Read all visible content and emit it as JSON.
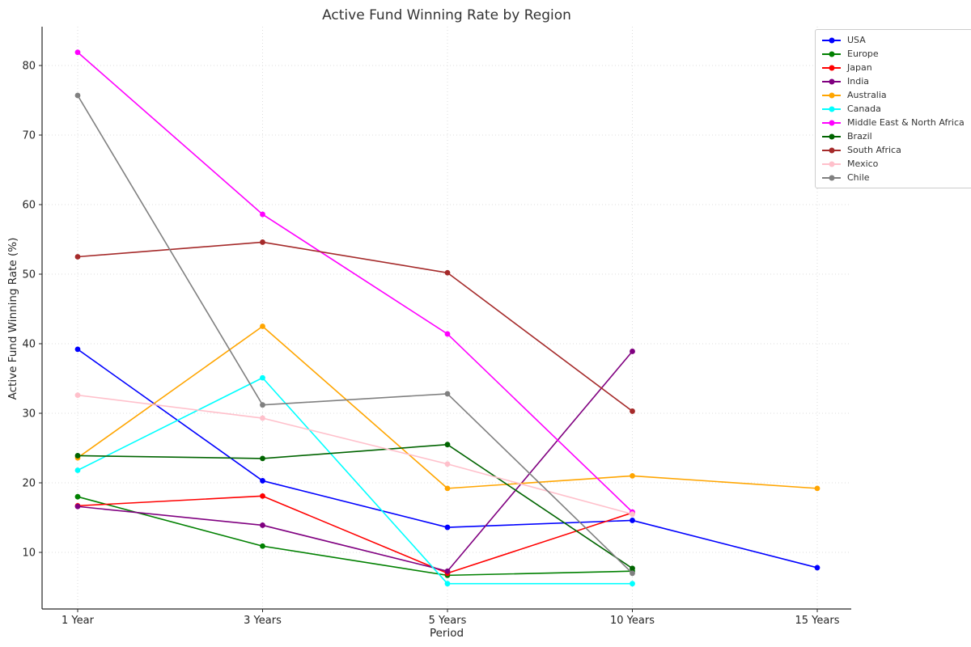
{
  "chart_data": {
    "type": "line",
    "title": "Active Fund Winning Rate by Region",
    "xlabel": "Period",
    "ylabel": "Active Fund Winning Rate (%)",
    "categories": [
      "1 Year",
      "3 Years",
      "5 Years",
      "10 Years",
      "15 Years"
    ],
    "y_ticks": [
      10,
      20,
      30,
      40,
      50,
      60,
      70,
      80
    ],
    "ylim": [
      1.9,
      85.6
    ],
    "grid": "dotted",
    "legend_position": "upper right outside",
    "marker": "circle",
    "series": [
      {
        "name": "USA",
        "color": "#0000ff",
        "values": [
          39.2,
          20.3,
          13.6,
          14.6,
          7.8
        ]
      },
      {
        "name": "Europe",
        "color": "#008000",
        "values": [
          18.0,
          10.9,
          6.7,
          7.3,
          null
        ]
      },
      {
        "name": "Japan",
        "color": "#ff0000",
        "values": [
          16.7,
          18.1,
          7.0,
          15.7,
          null
        ]
      },
      {
        "name": "India",
        "color": "#800080",
        "values": [
          16.6,
          13.9,
          7.3,
          38.9,
          null
        ]
      },
      {
        "name": "Australia",
        "color": "#ffa500",
        "values": [
          23.6,
          42.5,
          19.2,
          21.0,
          19.2
        ]
      },
      {
        "name": "Canada",
        "color": "#00ffff",
        "values": [
          21.8,
          35.1,
          5.5,
          5.5,
          null
        ]
      },
      {
        "name": "Middle East & North Africa",
        "color": "#ff00ff",
        "values": [
          81.9,
          58.6,
          41.4,
          15.8,
          null
        ]
      },
      {
        "name": "Brazil",
        "color": "#006400",
        "values": [
          23.9,
          23.5,
          25.5,
          7.7,
          null
        ]
      },
      {
        "name": "South Africa",
        "color": "#a52a2a",
        "values": [
          52.5,
          54.6,
          50.2,
          30.3,
          null
        ]
      },
      {
        "name": "Mexico",
        "color": "#ffc0cb",
        "values": [
          32.6,
          29.3,
          22.7,
          15.5,
          null
        ]
      },
      {
        "name": "Chile",
        "color": "#808080",
        "values": [
          75.7,
          31.2,
          32.8,
          7.0,
          null
        ]
      }
    ]
  }
}
